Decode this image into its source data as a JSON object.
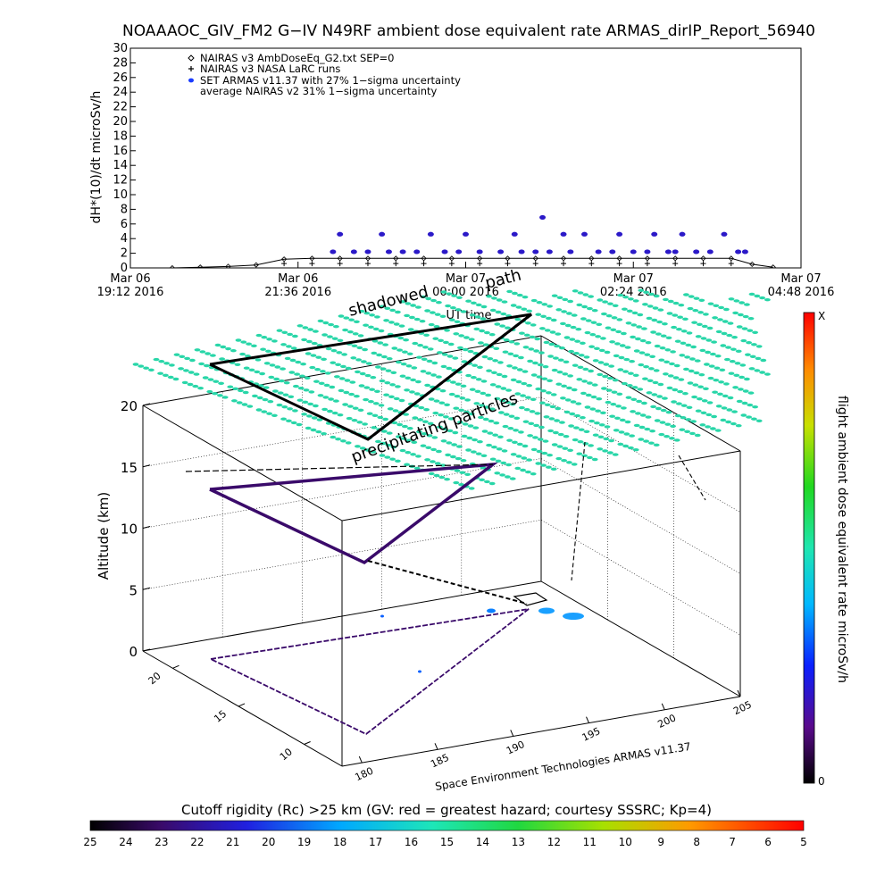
{
  "title": "NOAAAOC_GIV_FM2 G−IV   N49RF   ambient dose equivalent rate ARMAS_dirIP_Report_56940",
  "top_panel": {
    "ylabel": "dH*(10)/dt microSv/h",
    "xlabel": "UT time",
    "y_ticks": [
      "0",
      "2",
      "4",
      "6",
      "8",
      "10",
      "12",
      "14",
      "16",
      "18",
      "20",
      "22",
      "24",
      "26",
      "28",
      "30"
    ],
    "x_ticks": [
      {
        "line1": "Mar 06",
        "line2": "19:12 2016"
      },
      {
        "line1": "Mar 06",
        "line2": "21:36 2016"
      },
      {
        "line1": "Mar 07",
        "line2": "00:00 2016"
      },
      {
        "line1": "Mar 07",
        "line2": "02:24 2016"
      },
      {
        "line1": "Mar 07",
        "line2": "04:48 2016"
      }
    ],
    "legend": [
      {
        "symbol": "diamond",
        "text": "NAIRAS v3 AmbDoseEq_G2.txt SEP=0"
      },
      {
        "symbol": "plus",
        "text": "NAIRAS v3 NASA LaRC runs"
      },
      {
        "symbol": "dot",
        "text": "SET ARMAS v11.37 with 27% 1−sigma uncertainty"
      },
      {
        "symbol": "none",
        "text": "average NAIRAS v2 31% 1−sigma uncertainty"
      }
    ]
  },
  "chart_data": {
    "type": "scatter",
    "title": "NOAAAOC_GIV_FM2 G−IV N49RF ambient dose equivalent rate ARMAS_dirIP_Report_56940",
    "xlabel": "UT time",
    "ylabel": "dH*(10)/dt microSv/h",
    "ylim": [
      0,
      30
    ],
    "x_range_hours": [
      0,
      9.6
    ],
    "series": [
      {
        "name": "SET ARMAS v11.37 with 27% 1−sigma uncertainty",
        "x": [
          2.9,
          3.0,
          3.2,
          3.4,
          3.6,
          3.7,
          3.9,
          4.1,
          4.3,
          4.5,
          4.7,
          4.8,
          5.0,
          5.3,
          5.5,
          5.6,
          5.8,
          5.9,
          6.0,
          6.2,
          6.3,
          6.5,
          6.7,
          6.9,
          7.0,
          7.2,
          7.4,
          7.5,
          7.7,
          7.8,
          7.9,
          8.1,
          8.3,
          8.5,
          8.7,
          8.8
        ],
        "y": [
          2.2,
          4.6,
          2.2,
          2.2,
          4.6,
          2.2,
          2.2,
          2.2,
          4.6,
          2.2,
          2.2,
          4.6,
          2.2,
          2.2,
          4.6,
          2.2,
          2.2,
          6.9,
          2.2,
          4.6,
          2.2,
          4.6,
          2.2,
          2.2,
          4.6,
          2.2,
          2.2,
          4.6,
          2.2,
          2.2,
          4.6,
          2.2,
          2.2,
          4.6,
          2.2,
          2.2
        ]
      },
      {
        "name": "NAIRAS v3 AmbDoseEq_G2.txt SEP=0",
        "x": [
          0.6,
          1.0,
          1.4,
          1.8,
          2.2,
          2.6,
          3.0,
          3.4,
          3.8,
          4.2,
          4.6,
          5.0,
          5.4,
          5.8,
          6.2,
          6.6,
          7.0,
          7.4,
          7.8,
          8.2,
          8.6,
          8.9,
          9.2
        ],
        "y": [
          0.0,
          0.1,
          0.2,
          0.4,
          1.2,
          1.3,
          1.3,
          1.3,
          1.3,
          1.3,
          1.3,
          1.3,
          1.3,
          1.3,
          1.3,
          1.3,
          1.3,
          1.3,
          1.3,
          1.3,
          1.3,
          0.5,
          0.1
        ]
      },
      {
        "name": "NAIRAS v3 NASA LaRC runs",
        "x": [
          2.2,
          2.6,
          3.0,
          3.4,
          3.8,
          4.2,
          4.6,
          5.0,
          5.4,
          5.8,
          6.2,
          6.6,
          7.0,
          7.4,
          7.8,
          8.2,
          8.6
        ],
        "y": [
          0.6,
          0.6,
          0.6,
          0.6,
          0.6,
          0.6,
          0.6,
          0.6,
          0.6,
          0.6,
          0.6,
          0.6,
          0.6,
          0.6,
          0.6,
          0.6,
          0.6
        ]
      }
    ]
  },
  "bottom_panel": {
    "labels": {
      "shadowed": "shadowed",
      "path": "path",
      "precip": "precipitating particles",
      "altitude": "Altitude (km)",
      "credit": "Space Environment Technologies ARMAS v11.37",
      "colorbar_label": "flight ambient dose equivalent rate microSv/h",
      "cb_top": "X",
      "cb_bottom": "0"
    },
    "alt_ticks": [
      "0",
      "5",
      "10",
      "15",
      "20"
    ],
    "lat_ticks": [
      "20",
      "15",
      "10"
    ],
    "lon_ticks": [
      "180",
      "185",
      "190",
      "195",
      "200",
      "205"
    ]
  },
  "cutoff_bar": {
    "title": "Cutoff rigidity (Rc) >25 km (GV: red = greatest hazard; courtesy SSSRC; Kp=4)",
    "ticks": [
      "25",
      "24",
      "23",
      "22",
      "21",
      "20",
      "19",
      "18",
      "17",
      "16",
      "15",
      "14",
      "13",
      "12",
      "11",
      "10",
      "9",
      "8",
      "7",
      "6",
      "5"
    ]
  },
  "colors": {
    "armas_dot": "#2b19c8",
    "armas_line": "#3a0a6a",
    "shadow_grid": "#28d6a8"
  }
}
